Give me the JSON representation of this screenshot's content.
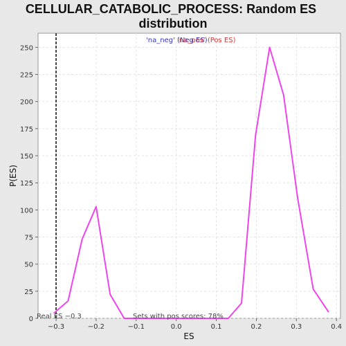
{
  "chart_data": {
    "type": "line",
    "title": "CELLULAR_CATABOLIC_PROCESS: Random ES distribution",
    "xlabel": "ES",
    "ylabel": "P(ES)",
    "xlim": [
      -0.345,
      0.41
    ],
    "ylim": [
      0,
      263
    ],
    "x_ticks": [
      -0.3,
      -0.2,
      -0.1,
      0.0,
      0.1,
      0.2,
      0.3,
      0.4
    ],
    "x_tick_labels": [
      "−0.3",
      "−0.2",
      "−0.1",
      "0.0",
      "0.1",
      "0.2",
      "0.3",
      "0.4"
    ],
    "y_ticks": [
      0,
      25,
      50,
      75,
      100,
      125,
      150,
      175,
      200,
      225,
      250
    ],
    "y_tick_labels": [
      "0",
      "25",
      "50",
      "75",
      "100",
      "125",
      "150",
      "175",
      "200",
      "225",
      "250"
    ],
    "grid": true,
    "series": [
      {
        "name": "",
        "color": "#ee44ee",
        "x": [
          -0.305,
          -0.27,
          -0.235,
          -0.2,
          -0.165,
          -0.13,
          0.13,
          0.163,
          0.198,
          0.233,
          0.268,
          0.303,
          0.342,
          0.38
        ],
        "y": [
          5,
          16,
          73,
          103,
          22,
          0,
          0,
          14,
          169,
          250,
          206,
          111,
          27,
          6
        ]
      }
    ],
    "real_es": {
      "value": -0.3,
      "label": "Real ES −0.3",
      "color": "#444444"
    },
    "legend": {
      "placement": "top-center",
      "neg_label": "'na_neg' (Neg ES)",
      "neg_color": "#3333bb",
      "pos_label": "'na_pos' (Pos ES)",
      "pos_color": "#dd3333"
    },
    "annotation": "Sets with pos scores: 78%"
  }
}
